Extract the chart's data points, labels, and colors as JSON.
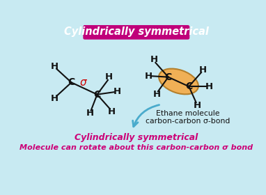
{
  "bg_color": "#c8eaf2",
  "title_text": "Cylindrically symmetrical",
  "title_bg": "#c0007a",
  "title_color": "#ffffff",
  "bottom_text_line1": "Cylindrically symmetrical",
  "bottom_text_line2": "Molecule can rotate about this carbon-carbon σ bond",
  "bottom_color": "#cc0077",
  "ethane_label_line1": "Ethane molecule",
  "ethane_label_line2": "carbon-carbon σ-bond",
  "sigma_color": "#cc0000",
  "ellipse_color": "#f5aa45",
  "ellipse_edge": "#b07820",
  "arrow_color": "#4aabcc",
  "black": "#111111"
}
